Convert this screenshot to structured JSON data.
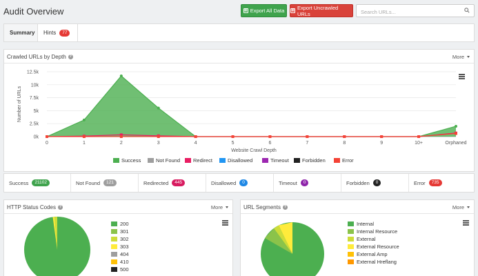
{
  "header": {
    "title": "Audit Overview",
    "export_all": "Export All Data",
    "export_uncrawled": "Export Uncrawled URLs",
    "search_placeholder": "Search URLs..."
  },
  "tabs": [
    {
      "label": "Summary"
    },
    {
      "label": "Hints",
      "count": "77"
    }
  ],
  "depth_panel": {
    "title": "Crawled URLs by Depth",
    "more": "More"
  },
  "chart_data": {
    "type": "area",
    "categories": [
      "0",
      "1",
      "2",
      "3",
      "4",
      "5",
      "6",
      "7",
      "8",
      "9",
      "10+",
      "Orphaned"
    ],
    "ylabel": "Number of URLs",
    "xlabel": "Website Crawl Depth",
    "yticks": [
      "0k",
      "2.5k",
      "5k",
      "7.5k",
      "10k",
      "12.5k"
    ],
    "ylim": [
      0,
      12500
    ],
    "series": [
      {
        "name": "Success",
        "color": "#4caf50",
        "values": [
          0,
          3200,
          11700,
          5500,
          0,
          0,
          0,
          0,
          0,
          0,
          0,
          2000
        ]
      },
      {
        "name": "Not Found",
        "color": "#9e9e9e",
        "values": [
          0,
          0,
          0,
          0,
          0,
          0,
          0,
          0,
          0,
          0,
          0,
          0
        ]
      },
      {
        "name": "Redirect",
        "color": "#e91e63",
        "values": [
          0,
          100,
          350,
          150,
          0,
          0,
          0,
          0,
          0,
          0,
          0,
          700
        ]
      },
      {
        "name": "Disallowed",
        "color": "#2196f3",
        "values": [
          0,
          0,
          0,
          0,
          0,
          0,
          0,
          0,
          0,
          0,
          0,
          0
        ]
      },
      {
        "name": "Timeout",
        "color": "#9c27b0",
        "values": [
          0,
          0,
          0,
          0,
          0,
          0,
          0,
          0,
          0,
          0,
          0,
          0
        ]
      },
      {
        "name": "Forbidden",
        "color": "#222222",
        "values": [
          0,
          0,
          0,
          0,
          0,
          0,
          0,
          0,
          0,
          0,
          0,
          0
        ]
      },
      {
        "name": "Error",
        "color": "#f44336",
        "values": [
          0,
          0,
          0,
          0,
          0,
          0,
          0,
          0,
          0,
          0,
          0,
          600
        ]
      }
    ]
  },
  "stats": [
    {
      "label": "Success",
      "value": "21102",
      "color": "#3fa34d"
    },
    {
      "label": "Not Found",
      "value": "121",
      "color": "#9e9e9e"
    },
    {
      "label": "Redirected",
      "value": "445",
      "color": "#d81b60"
    },
    {
      "label": "Disallowed",
      "value": "0",
      "color": "#1e88e5"
    },
    {
      "label": "Timeout",
      "value": "0",
      "color": "#8e24aa"
    },
    {
      "label": "Forbidden",
      "value": "0",
      "color": "#222222"
    },
    {
      "label": "Error",
      "value": "735",
      "color": "#e53935"
    }
  ],
  "status_panel": {
    "title": "HTTP Status Codes",
    "more": "More",
    "legend": [
      {
        "label": "200",
        "color": "#4caf50"
      },
      {
        "label": "301",
        "color": "#8bc34a"
      },
      {
        "label": "302",
        "color": "#cddc39"
      },
      {
        "label": "303",
        "color": "#ffeb3b"
      },
      {
        "label": "404",
        "color": "#9e9e9e"
      },
      {
        "label": "410",
        "color": "#ffc107"
      },
      {
        "label": "500",
        "color": "#222222"
      }
    ]
  },
  "segments_panel": {
    "title": "URL Segments",
    "more": "More",
    "legend": [
      {
        "label": "Internal",
        "color": "#4caf50"
      },
      {
        "label": "Internal Resource",
        "color": "#8bc34a"
      },
      {
        "label": "External",
        "color": "#cddc39"
      },
      {
        "label": "External Resource",
        "color": "#ffeb3b"
      },
      {
        "label": "External Amp",
        "color": "#ffc107"
      },
      {
        "label": "External Hreflang",
        "color": "#ff9800"
      }
    ]
  }
}
